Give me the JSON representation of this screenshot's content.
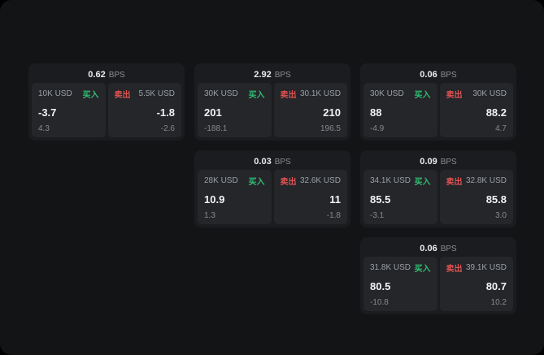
{
  "colors": {
    "buy": "#2fbf71",
    "sell": "#e05252"
  },
  "cards": [
    {
      "bps_value": "0.62",
      "bps_unit": "BPS",
      "buy": {
        "label": "买入",
        "amount": "10K USD",
        "price": "-3.7",
        "delta": "4.3"
      },
      "sell": {
        "label": "卖出",
        "amount": "5.5K USD",
        "price": "-1.8",
        "delta": "-2.6"
      }
    },
    {
      "bps_value": "2.92",
      "bps_unit": "BPS",
      "buy": {
        "label": "买入",
        "amount": "30K USD",
        "price": "201",
        "delta": "-188.1"
      },
      "sell": {
        "label": "卖出",
        "amount": "30.1K USD",
        "price": "210",
        "delta": "196.5"
      }
    },
    {
      "bps_value": "0.06",
      "bps_unit": "BPS",
      "buy": {
        "label": "买入",
        "amount": "30K USD",
        "price": "88",
        "delta": "-4.9"
      },
      "sell": {
        "label": "卖出",
        "amount": "30K USD",
        "price": "88.2",
        "delta": "4.7"
      }
    },
    {
      "bps_value": "0.03",
      "bps_unit": "BPS",
      "buy": {
        "label": "买入",
        "amount": "28K USD",
        "price": "10.9",
        "delta": "1.3"
      },
      "sell": {
        "label": "卖出",
        "amount": "32.6K USD",
        "price": "11",
        "delta": "-1.8"
      }
    },
    {
      "bps_value": "0.09",
      "bps_unit": "BPS",
      "buy": {
        "label": "买入",
        "amount": "34.1K USD",
        "price": "85.5",
        "delta": "-3.1"
      },
      "sell": {
        "label": "卖出",
        "amount": "32.8K USD",
        "price": "85.8",
        "delta": "3.0"
      }
    },
    {
      "bps_value": "0.06",
      "bps_unit": "BPS",
      "buy": {
        "label": "买入",
        "amount": "31.8K USD",
        "price": "80.5",
        "delta": "-10.8"
      },
      "sell": {
        "label": "卖出",
        "amount": "39.1K USD",
        "price": "80.7",
        "delta": "10.2"
      }
    }
  ]
}
